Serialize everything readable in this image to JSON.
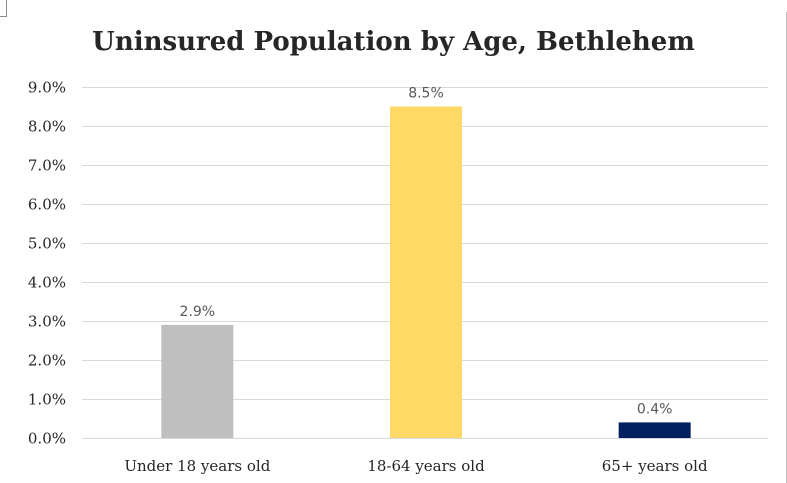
{
  "chart_data": {
    "type": "bar",
    "title": "Uninsured Population by Age, Bethlehem",
    "xlabel": "",
    "ylabel": "",
    "categories": [
      "Under 18 years old",
      "18-64 years old",
      "65+ years old"
    ],
    "values": [
      2.9,
      8.5,
      0.4
    ],
    "data_labels": [
      "2.9%",
      "8.5%",
      "0.4%"
    ],
    "colors": [
      "#bfbfbf",
      "#ffd966",
      "#002060"
    ],
    "ylim": [
      0,
      9
    ],
    "yticks": [
      0,
      1,
      2,
      3,
      4,
      5,
      6,
      7,
      8,
      9
    ],
    "ytick_labels": [
      "0.0%",
      "1.0%",
      "2.0%",
      "3.0%",
      "4.0%",
      "5.0%",
      "6.0%",
      "7.0%",
      "8.0%",
      "9.0%"
    ],
    "grid": true,
    "legend": "none",
    "gridline_color": "#d9d9d9"
  }
}
